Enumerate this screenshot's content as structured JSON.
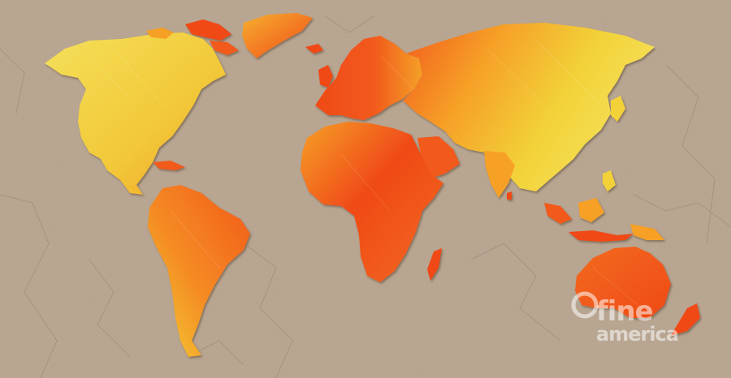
{
  "image": {
    "subject": "world-map",
    "colors": {
      "background": "#b8a590",
      "background_dark": "#a08e78",
      "crack": "#8a7968",
      "yellow": "#f2d238",
      "yellow_light": "#f5e05a",
      "orange": "#f6871e",
      "red_orange": "#f04a18",
      "shadow": "#6b5a48"
    }
  },
  "watermark": {
    "line1": "fine",
    "line2": "america",
    "icon": "fineart-ring-icon"
  }
}
